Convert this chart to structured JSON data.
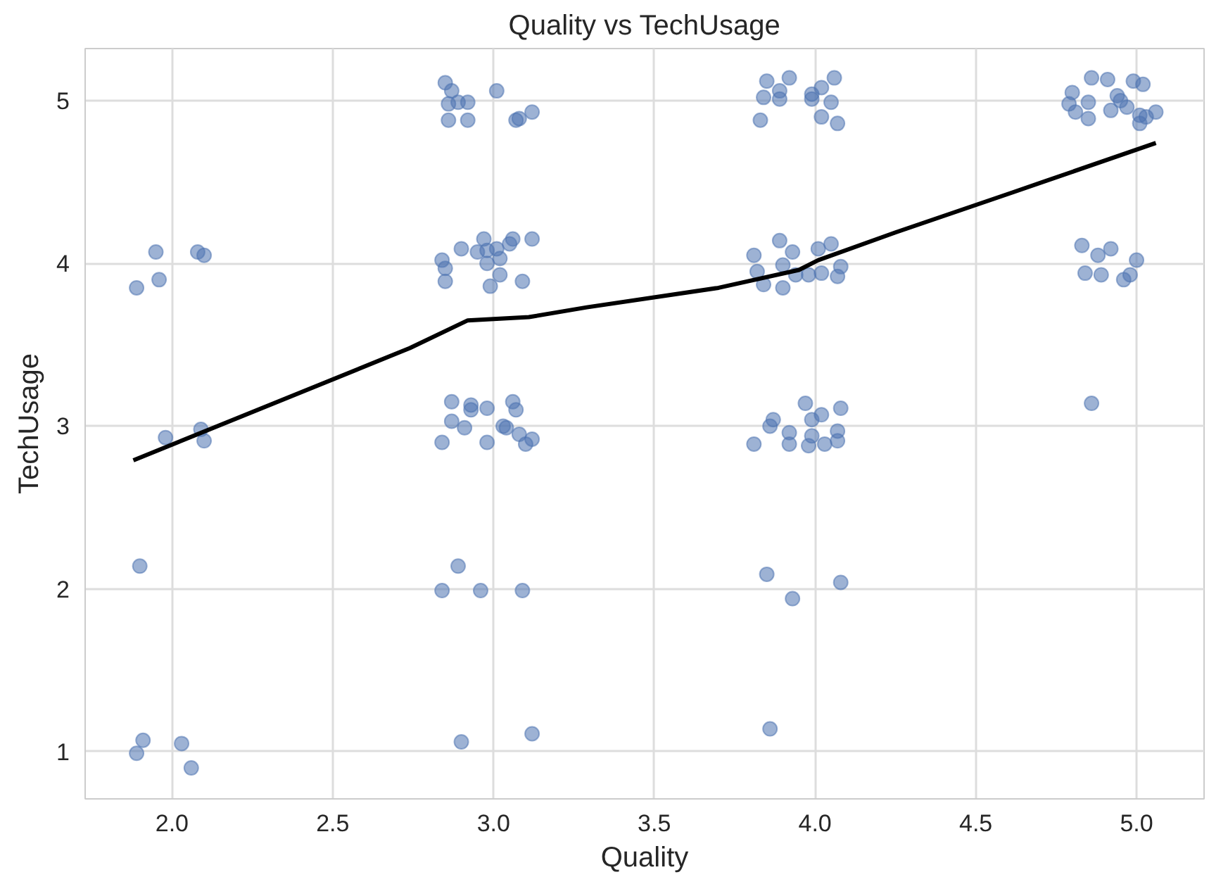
{
  "chart_data": {
    "type": "scatter",
    "title": "Quality vs TechUsage",
    "xlabel": "Quality",
    "ylabel": "TechUsage",
    "xlim": [
      1.73,
      5.21
    ],
    "ylim": [
      0.71,
      5.32
    ],
    "xticks": [
      {
        "value": 2,
        "label": "2.0"
      },
      {
        "value": 2.5,
        "label": "2.5"
      },
      {
        "value": 3,
        "label": "3.0"
      },
      {
        "value": 3.5,
        "label": "3.5"
      },
      {
        "value": 4,
        "label": "4.0"
      },
      {
        "value": 4.5,
        "label": "4.5"
      },
      {
        "value": 5,
        "label": "5.0"
      }
    ],
    "yticks": [
      1,
      2,
      3,
      4,
      5
    ],
    "grid": true,
    "marker": "circle",
    "series": [
      {
        "color": "#4c72b0",
        "x": [
          1.95,
          1.89,
          1.96,
          2.08,
          2.1,
          1.98,
          2.09,
          2.1,
          1.9,
          1.91,
          1.89,
          2.03,
          2.06,
          2.85,
          2.87,
          2.86,
          2.89,
          2.92,
          3.01,
          2.86,
          2.92,
          3.07,
          3.08,
          3.12,
          2.97,
          2.9,
          2.95,
          2.98,
          3.01,
          3.05,
          3.06,
          3.12,
          2.84,
          2.85,
          2.85,
          2.98,
          3.02,
          3.02,
          2.99,
          3.09,
          2.87,
          2.93,
          2.93,
          2.98,
          3.06,
          3.07,
          2.87,
          2.91,
          3.03,
          3.04,
          3.08,
          3.1,
          3.12,
          2.84,
          2.98,
          2.89,
          2.84,
          2.96,
          3.09,
          2.9,
          3.12,
          3.85,
          3.92,
          3.89,
          3.84,
          3.89,
          3.99,
          4.02,
          4.06,
          3.99,
          4.05,
          4.02,
          3.83,
          4.07,
          3.89,
          3.93,
          3.81,
          3.82,
          3.84,
          3.9,
          3.9,
          3.94,
          3.98,
          4.01,
          4.05,
          4.02,
          4.08,
          4.07,
          3.97,
          4.02,
          3.99,
          4.08,
          3.87,
          3.86,
          3.92,
          3.81,
          3.92,
          3.98,
          4.03,
          4.07,
          4.07,
          3.99,
          3.85,
          3.93,
          4.08,
          3.86,
          4.86,
          4.91,
          4.99,
          5.02,
          4.8,
          4.79,
          4.85,
          4.81,
          4.85,
          4.94,
          4.95,
          4.97,
          4.92,
          5.01,
          5.03,
          5.01,
          5.06,
          4.83,
          4.88,
          4.92,
          5.0,
          4.84,
          4.89,
          4.98,
          4.96,
          4.86
        ],
        "values": [
          4.07,
          3.85,
          3.9,
          4.07,
          4.05,
          2.93,
          2.98,
          2.91,
          2.14,
          1.07,
          0.99,
          1.05,
          0.9,
          5.11,
          5.06,
          4.98,
          4.99,
          4.99,
          5.06,
          4.88,
          4.88,
          4.88,
          4.89,
          4.93,
          4.15,
          4.09,
          4.07,
          4.08,
          4.09,
          4.12,
          4.15,
          4.15,
          4.02,
          3.97,
          3.89,
          4.0,
          4.03,
          3.93,
          3.86,
          3.89,
          3.15,
          3.13,
          3.1,
          3.11,
          3.15,
          3.1,
          3.03,
          2.99,
          3.0,
          2.99,
          2.95,
          2.89,
          2.92,
          2.9,
          2.9,
          2.14,
          1.99,
          1.99,
          1.99,
          1.06,
          1.11,
          5.12,
          5.14,
          5.06,
          5.02,
          5.01,
          5.04,
          5.08,
          5.14,
          5.01,
          4.99,
          4.9,
          4.88,
          4.86,
          4.14,
          4.07,
          4.05,
          3.95,
          3.87,
          3.99,
          3.85,
          3.93,
          3.93,
          4.09,
          4.12,
          3.94,
          3.98,
          3.92,
          3.14,
          3.07,
          3.04,
          3.11,
          3.04,
          3.0,
          2.96,
          2.89,
          2.89,
          2.88,
          2.89,
          2.91,
          2.97,
          2.94,
          2.09,
          1.94,
          2.04,
          1.14,
          5.14,
          5.13,
          5.12,
          5.1,
          5.05,
          4.98,
          4.99,
          4.93,
          4.89,
          5.03,
          5.0,
          4.96,
          4.94,
          4.91,
          4.9,
          4.86,
          4.93,
          4.11,
          4.05,
          4.09,
          4.02,
          3.94,
          3.93,
          3.93,
          3.9,
          3.14
        ]
      },
      {
        "type": "line",
        "marker": "none",
        "color": "#000000",
        "x": [
          1.88,
          2.74,
          2.92,
          3.11,
          3.29,
          3.7,
          3.95,
          4.01,
          4.25,
          4.62,
          5.06
        ],
        "values": [
          2.79,
          3.48,
          3.65,
          3.67,
          3.73,
          3.85,
          3.96,
          4.02,
          4.19,
          4.44,
          4.74
        ]
      }
    ]
  }
}
